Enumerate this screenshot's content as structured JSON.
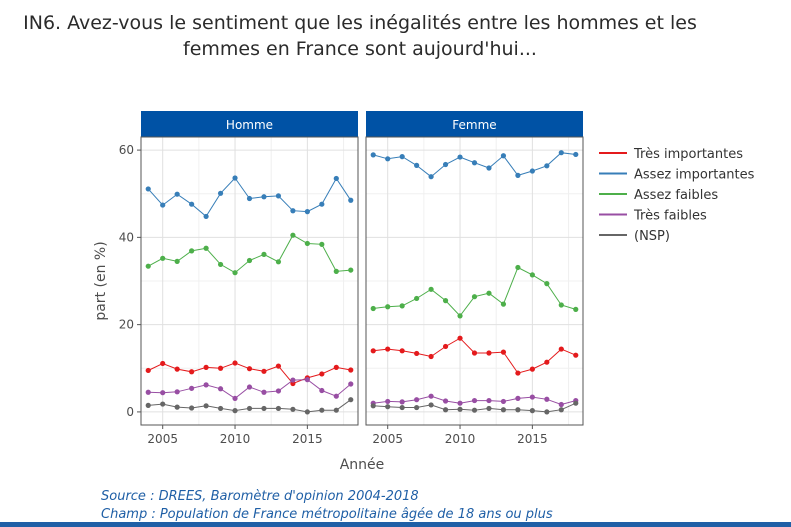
{
  "title": {
    "line1": "IN6. Avez-vous le sentiment que les inégalités entre les hommes et les",
    "line2": "femmes en France sont aujourd'hui..."
  },
  "footer": {
    "source": "Source : DREES, Baromètre d'opinion 2004-2018",
    "champ": "Champ : Population de France métropolitaine âgée de 18 ans ou plus"
  },
  "colors": {
    "Très importantes": "#e41a1c",
    "Assez importantes": "#377eb8",
    "Assez faibles": "#4daf4a",
    "Très faibles": "#984ea3",
    "(NSP)": "#666666",
    "strip": "#0052a5"
  },
  "chart_data": {
    "type": "line",
    "facets": [
      "Homme",
      "Femme"
    ],
    "xlabel": "Année",
    "ylabel": "part (en %)",
    "xticks": [
      "2005",
      "2010",
      "2015"
    ],
    "yticks": [
      "0",
      "20",
      "40",
      "60"
    ],
    "xlim": [
      2003.5,
      2018.5
    ],
    "ylim": [
      -3,
      63
    ],
    "legend_position": "right",
    "x": [
      2004,
      2005,
      2006,
      2007,
      2008,
      2009,
      2010,
      2011,
      2012,
      2013,
      2014,
      2015,
      2016,
      2017,
      2018
    ],
    "series": [
      {
        "name": "Très importantes",
        "Homme": [
          9.5,
          11.1,
          9.8,
          9.2,
          10.2,
          10.0,
          11.2,
          9.9,
          9.3,
          10.5,
          6.5,
          7.8,
          8.7,
          10.2,
          9.6
        ],
        "Femme": [
          14.0,
          14.4,
          14.0,
          13.4,
          12.7,
          15.0,
          16.9,
          13.5,
          13.5,
          13.7,
          8.9,
          9.8,
          11.4,
          14.4,
          13.0
        ]
      },
      {
        "name": "Assez importantes",
        "Homme": [
          51.1,
          47.4,
          49.9,
          47.6,
          44.8,
          50.1,
          53.6,
          48.9,
          49.3,
          49.5,
          46.1,
          45.9,
          47.6,
          53.5,
          48.5
        ],
        "Femme": [
          58.9,
          58.0,
          58.5,
          56.5,
          53.9,
          56.7,
          58.4,
          57.1,
          55.9,
          58.7,
          54.2,
          55.2,
          56.4,
          59.4,
          59.0
        ]
      },
      {
        "name": "Assez faibles",
        "Homme": [
          33.4,
          35.2,
          34.5,
          36.9,
          37.5,
          33.8,
          31.9,
          34.7,
          36.1,
          34.4,
          40.5,
          38.6,
          38.4,
          32.2,
          32.5
        ],
        "Femme": [
          23.7,
          24.1,
          24.3,
          26.0,
          28.1,
          25.5,
          22.0,
          26.4,
          27.2,
          24.7,
          33.1,
          31.4,
          29.4,
          24.5,
          23.5
        ]
      },
      {
        "name": "Très faibles",
        "Homme": [
          4.5,
          4.4,
          4.6,
          5.4,
          6.2,
          5.3,
          3.1,
          5.7,
          4.5,
          4.8,
          7.3,
          7.4,
          4.9,
          3.6,
          6.4
        ],
        "Femme": [
          2.0,
          2.4,
          2.3,
          2.8,
          3.6,
          2.5,
          2.0,
          2.6,
          2.6,
          2.4,
          3.1,
          3.4,
          2.9,
          1.7,
          2.6
        ]
      },
      {
        "name": "(NSP)",
        "Homme": [
          1.5,
          1.8,
          1.1,
          0.9,
          1.4,
          0.8,
          0.3,
          0.8,
          0.8,
          0.8,
          0.6,
          0.0,
          0.4,
          0.4,
          2.8
        ],
        "Femme": [
          1.4,
          1.2,
          1.0,
          1.0,
          1.6,
          0.5,
          0.6,
          0.4,
          0.8,
          0.5,
          0.5,
          0.3,
          0.0,
          0.5,
          2.0
        ]
      }
    ]
  }
}
